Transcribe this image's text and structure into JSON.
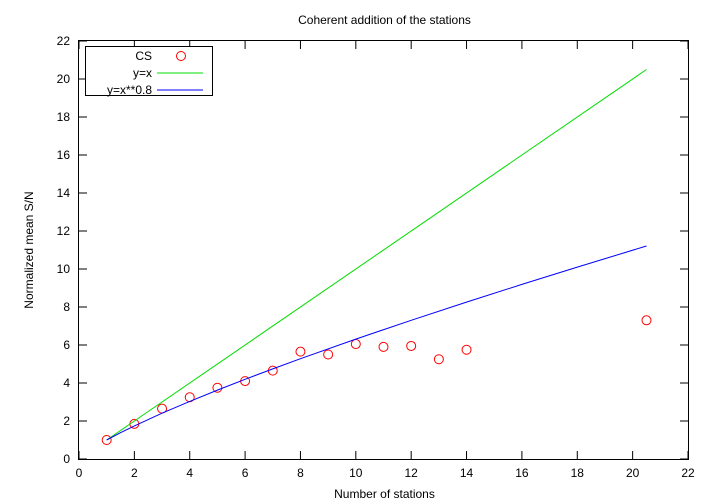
{
  "chart_data": {
    "type": "line",
    "title": "Coherent addition of the stations",
    "xlabel": "Number of stations",
    "ylabel": "Normalized mean S/N",
    "xlim": [
      0,
      22
    ],
    "ylim": [
      0,
      22
    ],
    "xticks": [
      0,
      2,
      4,
      6,
      8,
      10,
      12,
      14,
      16,
      18,
      20,
      22
    ],
    "yticks": [
      0,
      2,
      4,
      6,
      8,
      10,
      12,
      14,
      16,
      18,
      20,
      22
    ],
    "grid": false,
    "legend_position": "top-left",
    "series": [
      {
        "name": "CS",
        "kind": "scatter",
        "marker": "open-circle",
        "color": "#ff0000",
        "x": [
          1,
          2,
          3,
          4,
          5,
          6,
          7,
          8,
          9,
          10,
          11,
          12,
          13,
          14,
          20.5
        ],
        "y": [
          1.0,
          1.85,
          2.65,
          3.25,
          3.75,
          4.1,
          4.65,
          5.65,
          5.5,
          6.05,
          5.9,
          5.95,
          5.25,
          5.75,
          7.3
        ]
      },
      {
        "name": "y=x",
        "kind": "line",
        "color": "#00dd00",
        "x": [
          1,
          20.5
        ],
        "y": [
          1,
          20.5
        ]
      },
      {
        "name": "y=x**0.8",
        "kind": "line",
        "color": "#0000ff",
        "x": [
          1,
          1.5,
          2,
          3,
          4,
          5,
          6,
          7,
          8,
          10,
          12,
          14,
          16,
          18,
          20.5
        ],
        "y": [
          1,
          1.383,
          1.741,
          2.408,
          3.031,
          3.624,
          4.193,
          4.743,
          5.278,
          6.31,
          7.3,
          8.257,
          9.19,
          10.101,
          11.209
        ]
      }
    ]
  }
}
